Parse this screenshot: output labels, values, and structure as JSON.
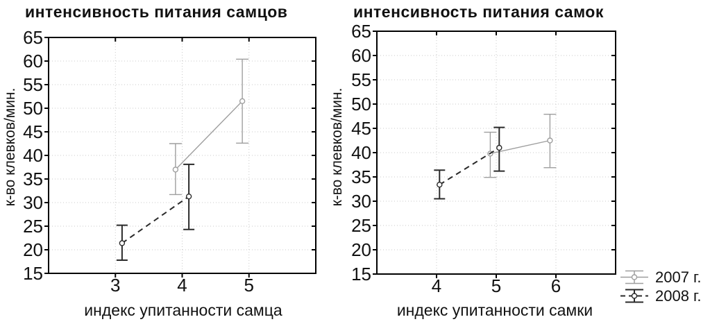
{
  "colors": {
    "series_2007": "#9e9e9e",
    "series_2008": "#2a2a2a",
    "grid": "#c9c9c9",
    "frame": "#000000",
    "text": "#111111",
    "background": "#ffffff"
  },
  "legend": {
    "items": [
      {
        "label": "2007 г.",
        "style": "solid",
        "color_key": "series_2007"
      },
      {
        "label": "2008 г.",
        "style": "dashed",
        "color_key": "series_2008"
      }
    ]
  },
  "chart_data": [
    {
      "type": "line",
      "title": "интенсивность питания самцов",
      "xlabel": "индекс упитанности самца",
      "ylabel": "к-во клевков/мин.",
      "xlim": [
        2,
        6
      ],
      "ylim": [
        15,
        65
      ],
      "xticks": [
        3,
        4,
        5
      ],
      "yticks": [
        15,
        20,
        25,
        30,
        35,
        40,
        45,
        50,
        55,
        60,
        65
      ],
      "grid": true,
      "series": [
        {
          "name": "2007 г.",
          "color_key": "series_2007",
          "style": "solid",
          "points": [
            {
              "x": 3.9,
              "y": 37.0,
              "err_lo": 31.7,
              "err_hi": 42.5
            },
            {
              "x": 4.9,
              "y": 51.5,
              "err_lo": 42.6,
              "err_hi": 60.4
            }
          ]
        },
        {
          "name": "2008 г.",
          "color_key": "series_2008",
          "style": "dashed",
          "points": [
            {
              "x": 3.1,
              "y": 21.4,
              "err_lo": 17.8,
              "err_hi": 25.2
            },
            {
              "x": 4.1,
              "y": 31.3,
              "err_lo": 24.3,
              "err_hi": 38.1
            }
          ]
        }
      ]
    },
    {
      "type": "line",
      "title": "интенсивность питания самок",
      "xlabel": "индекс упитанности самки",
      "ylabel": "к-во клевков/мин.",
      "xlim": [
        3,
        7
      ],
      "ylim": [
        15,
        65
      ],
      "xticks": [
        4,
        5,
        6
      ],
      "yticks": [
        15,
        20,
        25,
        30,
        35,
        40,
        45,
        50,
        55,
        60,
        65
      ],
      "grid": true,
      "series": [
        {
          "name": "2007 г.",
          "color_key": "series_2007",
          "style": "solid",
          "points": [
            {
              "x": 4.9,
              "y": 39.8,
              "err_lo": 34.9,
              "err_hi": 44.2
            },
            {
              "x": 5.9,
              "y": 42.5,
              "err_lo": 36.9,
              "err_hi": 47.9
            }
          ]
        },
        {
          "name": "2008 г.",
          "color_key": "series_2008",
          "style": "dashed",
          "points": [
            {
              "x": 4.05,
              "y": 33.4,
              "err_lo": 30.5,
              "err_hi": 36.4
            },
            {
              "x": 5.05,
              "y": 41.0,
              "err_lo": 36.2,
              "err_hi": 45.2
            }
          ]
        }
      ]
    }
  ]
}
